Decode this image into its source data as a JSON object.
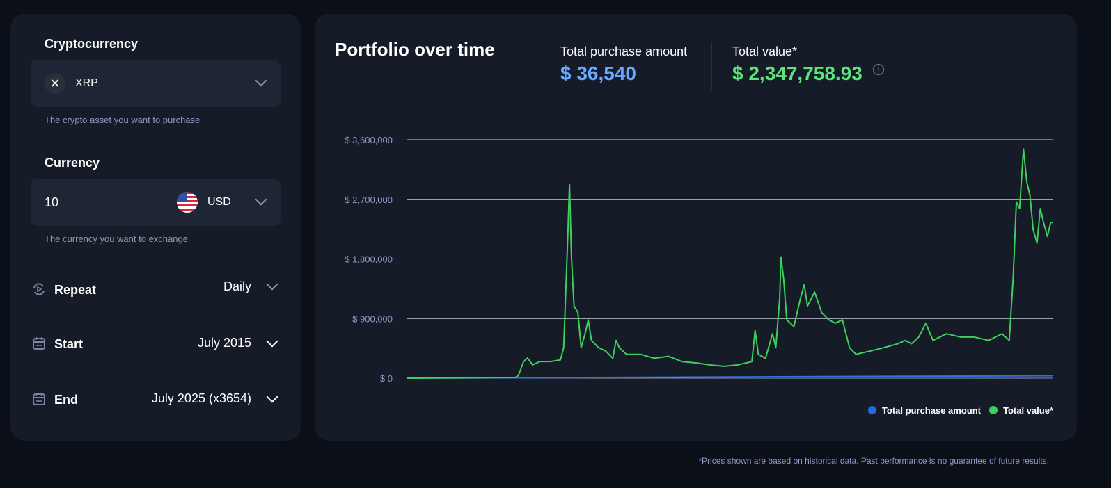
{
  "form": {
    "crypto_label": "Cryptocurrency",
    "crypto_value": "XRP",
    "crypto_hint": "The crypto asset you want to purchase",
    "currency_label": "Currency",
    "amount_value": "10",
    "currency_value": "USD",
    "currency_hint": "The currency you want to exchange",
    "repeat_label": "Repeat",
    "repeat_value": "Daily",
    "start_label": "Start",
    "start_value": "July 2015",
    "end_label": "End",
    "end_value": "July 2025 (x3654)"
  },
  "summary": {
    "title": "Portfolio over time",
    "purchase_label": "Total purchase amount",
    "purchase_value": "$ 36,540",
    "value_label": "Total value*",
    "value_value": "$ 2,347,758.93"
  },
  "colors": {
    "purchase": "#6aa8ff",
    "value": "#5ee27a",
    "line_value": "#3ecf5e",
    "line_purchase": "#2f6fe0"
  },
  "footer": "*Prices shown are based on historical data. Past performance is no guarantee of future results.",
  "chart_data": {
    "type": "line",
    "title": "Portfolio over time",
    "xlabel": "",
    "ylabel": "",
    "xlim": [
      2015.5,
      2025.5
    ],
    "ylim": [
      0,
      3600000
    ],
    "yticks": [
      0,
      900000,
      1800000,
      2700000,
      3600000
    ],
    "ytick_labels": [
      "$ 0",
      "$ 900,000",
      "$ 1,800,000",
      "$ 2,700,000",
      "$ 3,600,000"
    ],
    "grid": true,
    "legend": {
      "placement": "bottom-right",
      "entries": [
        "Total purchase amount",
        "Total value*"
      ]
    },
    "series": [
      {
        "name": "Total purchase amount",
        "points": [
          [
            2015.5,
            0
          ],
          [
            2025.5,
            36540
          ]
        ]
      },
      {
        "name": "Total value*",
        "points": [
          [
            2015.5,
            0
          ],
          [
            2017.18,
            10000
          ],
          [
            2017.23,
            40000
          ],
          [
            2017.31,
            250000
          ],
          [
            2017.37,
            305000
          ],
          [
            2017.45,
            200000
          ],
          [
            2017.56,
            250000
          ],
          [
            2017.72,
            250000
          ],
          [
            2017.88,
            275000
          ],
          [
            2017.93,
            460000
          ],
          [
            2017.99,
            2040000
          ],
          [
            2018.02,
            2930000
          ],
          [
            2018.05,
            1830000
          ],
          [
            2018.09,
            1090000
          ],
          [
            2018.15,
            990000
          ],
          [
            2018.2,
            460000
          ],
          [
            2018.26,
            670000
          ],
          [
            2018.31,
            880000
          ],
          [
            2018.36,
            570000
          ],
          [
            2018.47,
            460000
          ],
          [
            2018.58,
            410000
          ],
          [
            2018.69,
            300000
          ],
          [
            2018.74,
            570000
          ],
          [
            2018.79,
            460000
          ],
          [
            2018.9,
            360000
          ],
          [
            2019.12,
            360000
          ],
          [
            2019.33,
            300000
          ],
          [
            2019.55,
            330000
          ],
          [
            2019.76,
            250000
          ],
          [
            2019.98,
            230000
          ],
          [
            2020.19,
            200000
          ],
          [
            2020.41,
            180000
          ],
          [
            2020.62,
            200000
          ],
          [
            2020.84,
            250000
          ],
          [
            2020.89,
            720000
          ],
          [
            2020.94,
            360000
          ],
          [
            2021.05,
            300000
          ],
          [
            2021.16,
            670000
          ],
          [
            2021.21,
            460000
          ],
          [
            2021.27,
            1200000
          ],
          [
            2021.29,
            1830000
          ],
          [
            2021.33,
            1510000
          ],
          [
            2021.38,
            880000
          ],
          [
            2021.49,
            780000
          ],
          [
            2021.59,
            1200000
          ],
          [
            2021.65,
            1410000
          ],
          [
            2021.7,
            1090000
          ],
          [
            2021.81,
            1300000
          ],
          [
            2021.92,
            990000
          ],
          [
            2022.03,
            880000
          ],
          [
            2022.13,
            830000
          ],
          [
            2022.24,
            880000
          ],
          [
            2022.35,
            460000
          ],
          [
            2022.45,
            360000
          ],
          [
            2022.67,
            410000
          ],
          [
            2022.88,
            460000
          ],
          [
            2023.1,
            520000
          ],
          [
            2023.21,
            570000
          ],
          [
            2023.31,
            520000
          ],
          [
            2023.42,
            620000
          ],
          [
            2023.53,
            830000
          ],
          [
            2023.64,
            570000
          ],
          [
            2023.85,
            670000
          ],
          [
            2024.07,
            620000
          ],
          [
            2024.28,
            620000
          ],
          [
            2024.5,
            570000
          ],
          [
            2024.71,
            670000
          ],
          [
            2024.82,
            570000
          ],
          [
            2024.88,
            1510000
          ],
          [
            2024.93,
            2660000
          ],
          [
            2024.98,
            2560000
          ],
          [
            2025.04,
            3460000
          ],
          [
            2025.09,
            2970000
          ],
          [
            2025.14,
            2760000
          ],
          [
            2025.19,
            2240000
          ],
          [
            2025.25,
            2040000
          ],
          [
            2025.3,
            2560000
          ],
          [
            2025.35,
            2350000
          ],
          [
            2025.41,
            2140000
          ],
          [
            2025.46,
            2350000
          ],
          [
            2025.49,
            2350000
          ]
        ]
      }
    ]
  }
}
